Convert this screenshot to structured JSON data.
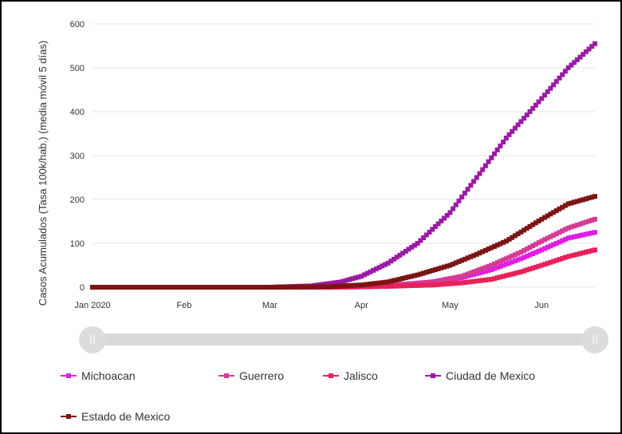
{
  "chart_data": {
    "type": "line",
    "ylabel": "Casos Acumulados (Tasa 100k/hab.) (media móvil 5 días)",
    "x_ticks": [
      "Jan 2020",
      "Feb",
      "Mar",
      "Apr",
      "May",
      "Jun"
    ],
    "x_range": [
      "2020-01-01",
      "2020-06-19"
    ],
    "yticks": [
      0,
      100,
      200,
      300,
      400,
      500,
      600
    ],
    "ylim": [
      0,
      600
    ],
    "grid": true,
    "legend_position": "bottom",
    "series": [
      {
        "name": "Michoacan",
        "color": "#e01ee3",
        "x": [
          "2020-01-01",
          "2020-03-01",
          "2020-03-25",
          "2020-04-10",
          "2020-04-25",
          "2020-05-05",
          "2020-05-15",
          "2020-05-25",
          "2020-06-01",
          "2020-06-10",
          "2020-06-19"
        ],
        "y": [
          0,
          0,
          1,
          4,
          12,
          22,
          40,
          65,
          85,
          112,
          125
        ]
      },
      {
        "name": "Guerrero",
        "color": "#d53b94",
        "x": [
          "2020-01-01",
          "2020-03-01",
          "2020-03-25",
          "2020-04-10",
          "2020-04-25",
          "2020-05-05",
          "2020-05-15",
          "2020-05-25",
          "2020-06-01",
          "2020-06-10",
          "2020-06-19"
        ],
        "y": [
          0,
          0,
          1,
          4,
          12,
          25,
          50,
          80,
          105,
          135,
          155
        ]
      },
      {
        "name": "Jalisco",
        "color": "#e8215a",
        "x": [
          "2020-01-01",
          "2020-03-01",
          "2020-03-25",
          "2020-04-10",
          "2020-04-25",
          "2020-05-05",
          "2020-05-15",
          "2020-05-25",
          "2020-06-01",
          "2020-06-10",
          "2020-06-19"
        ],
        "y": [
          0,
          0,
          0,
          2,
          5,
          10,
          18,
          35,
          50,
          70,
          85
        ]
      },
      {
        "name": "Ciudad de Mexico",
        "color": "#9a1ba3",
        "x": [
          "2020-01-01",
          "2020-03-01",
          "2020-03-15",
          "2020-03-25",
          "2020-04-01",
          "2020-04-10",
          "2020-04-20",
          "2020-05-01",
          "2020-05-10",
          "2020-05-20",
          "2020-06-01",
          "2020-06-10",
          "2020-06-19"
        ],
        "y": [
          0,
          0,
          3,
          12,
          25,
          55,
          100,
          170,
          250,
          340,
          430,
          500,
          555
        ]
      },
      {
        "name": "Estado de Mexico",
        "color": "#7c1414",
        "x": [
          "2020-01-01",
          "2020-03-01",
          "2020-03-20",
          "2020-04-01",
          "2020-04-10",
          "2020-04-20",
          "2020-05-01",
          "2020-05-10",
          "2020-05-20",
          "2020-06-01",
          "2020-06-10",
          "2020-06-19"
        ],
        "y": [
          0,
          0,
          1,
          5,
          12,
          28,
          50,
          75,
          105,
          155,
          190,
          207
        ]
      }
    ]
  },
  "legend": [
    {
      "label": "Michoacan",
      "color": "#e01ee3"
    },
    {
      "label": "Guerrero",
      "color": "#d53b94"
    },
    {
      "label": "Jalisco",
      "color": "#e8215a"
    },
    {
      "label": "Ciudad de Mexico",
      "color": "#9a1ba3"
    },
    {
      "label": "Estado de Mexico",
      "color": "#7c1414"
    }
  ],
  "slider": {
    "start_fraction": 0.0,
    "end_fraction": 1.0
  }
}
